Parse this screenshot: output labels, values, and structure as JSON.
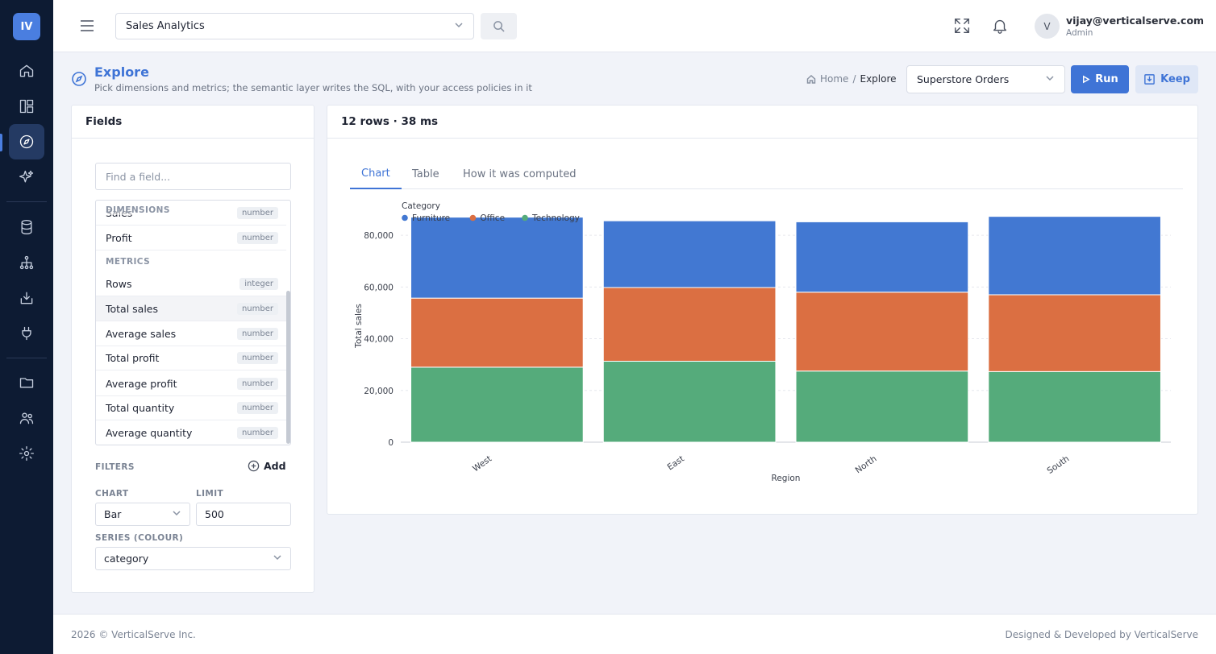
{
  "app": {
    "logo": "IV",
    "selector_value": "Sales Analytics",
    "user_name": "vijay@verticalserve.com",
    "user_role": "Admin",
    "user_initial": "V"
  },
  "page": {
    "title": "Explore",
    "subtitle": "Pick dimensions and metrics; the semantic layer writes the SQL, with your access policies in it",
    "breadcrumb": [
      "Home",
      "Explore"
    ],
    "dataset": "Superstore Orders",
    "run_label": "Run",
    "keep_label": "Keep"
  },
  "fields_panel": {
    "title": "Fields",
    "search_placeholder": "Find a field...",
    "dimensions_header": "DIMENSIONS",
    "metrics_header": "METRICS",
    "dimensions": [
      {
        "name": "Sales",
        "type": "number"
      },
      {
        "name": "Profit",
        "type": "number"
      }
    ],
    "metrics": [
      {
        "name": "Rows",
        "type": "integer"
      },
      {
        "name": "Total sales",
        "type": "number"
      },
      {
        "name": "Average sales",
        "type": "number"
      },
      {
        "name": "Total profit",
        "type": "number"
      },
      {
        "name": "Average profit",
        "type": "number"
      },
      {
        "name": "Total quantity",
        "type": "number"
      },
      {
        "name": "Average quantity",
        "type": "number"
      }
    ],
    "filters_label": "FILTERS",
    "add_label": "Add",
    "chart_label": "CHART",
    "chart_value": "Bar",
    "limit_label": "LIMIT",
    "limit_value": "500",
    "series_label": "SERIES (COLOUR)",
    "series_value": "category"
  },
  "results": {
    "summary": "12 rows · 38 ms",
    "tabs": [
      "Chart",
      "Table",
      "How it was computed"
    ]
  },
  "chart_data": {
    "type": "bar",
    "stacked": true,
    "categories": [
      "West",
      "East",
      "North",
      "South"
    ],
    "xlabel": "Region",
    "ylabel": "Total sales",
    "ylim": [
      0,
      90000
    ],
    "yticks": [
      0,
      20000,
      40000,
      60000,
      80000
    ],
    "ytick_labels": [
      "0",
      "20,000",
      "40,000",
      "60,000",
      "80,000"
    ],
    "legend_title": "Category",
    "legend_position": "top-left",
    "grid": true,
    "series": [
      {
        "name": "Technology",
        "color": "#55ab7b",
        "values": [
          29000,
          31300,
          27500,
          27300
        ]
      },
      {
        "name": "Office",
        "color": "#db6f42",
        "values": [
          26700,
          28500,
          30500,
          29700
        ]
      },
      {
        "name": "Furniture",
        "color": "#4278d2",
        "values": [
          31300,
          25800,
          27200,
          30300
        ]
      }
    ],
    "legend_order": [
      "Furniture",
      "Office",
      "Technology"
    ]
  },
  "footer": {
    "left": "2026 © VerticalServe Inc.",
    "right": "Designed & Developed by VerticalServe"
  }
}
